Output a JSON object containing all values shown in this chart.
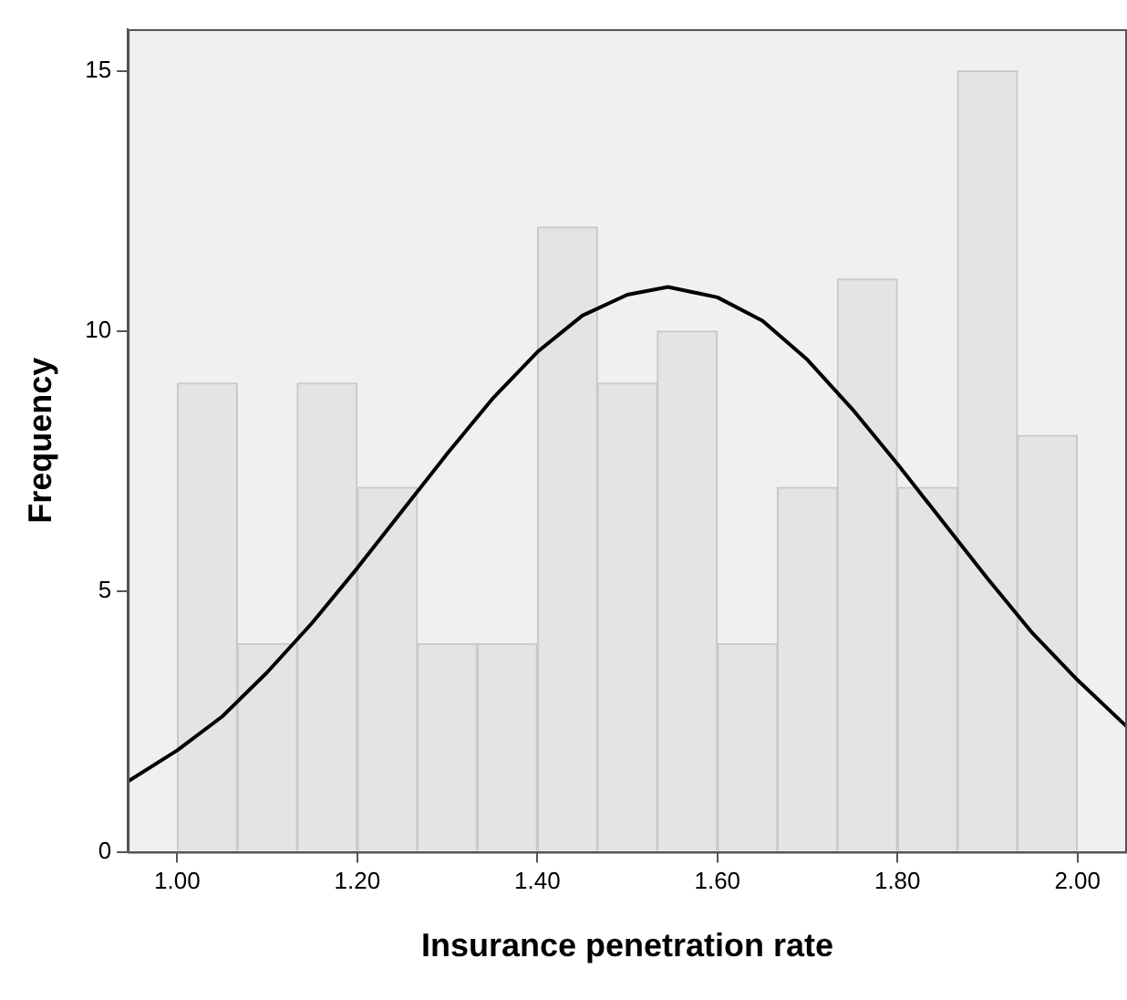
{
  "chart_data": {
    "type": "histogram",
    "xlabel": "Insurance penetration rate",
    "ylabel": "Frequency",
    "xlim": [
      0.945,
      2.055
    ],
    "ylim": [
      0,
      15.8
    ],
    "xticks": [
      {
        "value": 1,
        "label": "1.00"
      },
      {
        "value": 1.2,
        "label": "1.20"
      },
      {
        "value": 1.4,
        "label": "1.40"
      },
      {
        "value": 1.6,
        "label": "1.60"
      },
      {
        "value": 1.8,
        "label": "1.80"
      },
      {
        "value": 2,
        "label": "2.00"
      }
    ],
    "yticks": [
      0,
      5,
      10,
      15
    ],
    "grid": false,
    "legend": false,
    "series": [
      {
        "type": "histogram",
        "color": "#e4e4e4",
        "bins": [
          1.0,
          1.067,
          1.133,
          1.2,
          1.267,
          1.333,
          1.4,
          1.467,
          1.533,
          1.6,
          1.667,
          1.733,
          1.8,
          1.867,
          1.933,
          2.0
        ],
        "values": [
          9,
          4,
          9,
          7,
          4,
          4,
          12,
          9,
          10,
          4,
          7,
          11,
          7,
          15,
          8
        ]
      },
      {
        "type": "line",
        "color": "#000000",
        "marker": "none",
        "x": [
          0.945,
          1.0,
          1.05,
          1.1,
          1.15,
          1.2,
          1.25,
          1.3,
          1.35,
          1.4,
          1.45,
          1.5,
          1.545,
          1.6,
          1.65,
          1.7,
          1.75,
          1.8,
          1.85,
          1.9,
          1.95,
          2.0,
          2.055
        ],
        "values": [
          1.35,
          1.95,
          2.6,
          3.45,
          4.4,
          5.45,
          6.55,
          7.65,
          8.7,
          9.6,
          10.3,
          10.7,
          10.85,
          10.65,
          10.2,
          9.45,
          8.5,
          7.45,
          6.35,
          5.25,
          4.2,
          3.3,
          2.4
        ]
      }
    ]
  }
}
